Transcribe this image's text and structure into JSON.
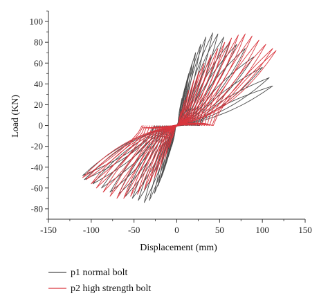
{
  "chart_data": {
    "type": "line",
    "title": "",
    "xlabel": "Displacement (mm)",
    "ylabel": "Load (KN)",
    "xlim": [
      -150,
      150
    ],
    "ylim": [
      -90,
      110
    ],
    "xticks": [
      -150,
      -100,
      -50,
      0,
      50,
      100,
      150
    ],
    "yticks": [
      -80,
      -60,
      -40,
      -20,
      0,
      20,
      40,
      60,
      80,
      100
    ],
    "grid": false,
    "legend_position": "bottom-left",
    "series": [
      {
        "name": "p1 normal bolt",
        "color": "#4a4a4a",
        "cycles": [
          {
            "dmax": 6,
            "pmax": 26,
            "dmin": -6,
            "pmin": -20
          },
          {
            "dmax": 10,
            "pmax": 38,
            "dmin": -10,
            "pmin": -30
          },
          {
            "dmax": 14,
            "pmax": 50,
            "dmin": -14,
            "pmin": -40
          },
          {
            "dmax": 18,
            "pmax": 60,
            "dmin": -18,
            "pmin": -50
          },
          {
            "dmax": 22,
            "pmax": 70,
            "dmin": -22,
            "pmin": -58
          },
          {
            "dmax": 28,
            "pmax": 78,
            "dmin": -26,
            "pmin": -65
          },
          {
            "dmax": 34,
            "pmax": 85,
            "dmin": -32,
            "pmin": -72
          },
          {
            "dmax": 42,
            "pmax": 89,
            "dmin": -38,
            "pmin": -74
          },
          {
            "dmax": 48,
            "pmax": 88,
            "dmin": -45,
            "pmin": -72
          },
          {
            "dmax": 55,
            "pmax": 85,
            "dmin": -52,
            "pmin": -70
          },
          {
            "dmax": 62,
            "pmax": 80,
            "dmin": -60,
            "pmin": -68
          },
          {
            "dmax": 70,
            "pmax": 78,
            "dmin": -68,
            "pmin": -66
          },
          {
            "dmax": 80,
            "pmax": 74,
            "dmin": -78,
            "pmin": -64
          },
          {
            "dmax": 90,
            "pmax": 66,
            "dmin": -88,
            "pmin": -60
          },
          {
            "dmax": 100,
            "pmax": 56,
            "dmin": -98,
            "pmin": -56
          },
          {
            "dmax": 108,
            "pmax": 46,
            "dmin": -108,
            "pmin": -52
          },
          {
            "dmax": 112,
            "pmax": 38,
            "dmin": -110,
            "pmin": -48
          }
        ]
      },
      {
        "name": "p2 high strength bolt",
        "color": "#d9363e",
        "cycles": [
          {
            "dmax": 5,
            "pmax": 14,
            "dmin": -5,
            "pmin": -12
          },
          {
            "dmax": 9,
            "pmax": 24,
            "dmin": -9,
            "pmin": -22
          },
          {
            "dmax": 14,
            "pmax": 34,
            "dmin": -14,
            "pmin": -32
          },
          {
            "dmax": 20,
            "pmax": 44,
            "dmin": -20,
            "pmin": -42
          },
          {
            "dmax": 26,
            "pmax": 52,
            "dmin": -26,
            "pmin": -50
          },
          {
            "dmax": 32,
            "pmax": 60,
            "dmin": -32,
            "pmin": -56
          },
          {
            "dmax": 40,
            "pmax": 68,
            "dmin": -38,
            "pmin": -62
          },
          {
            "dmax": 48,
            "pmax": 74,
            "dmin": -46,
            "pmin": -66
          },
          {
            "dmax": 56,
            "pmax": 80,
            "dmin": -54,
            "pmin": -68
          },
          {
            "dmax": 64,
            "pmax": 84,
            "dmin": -62,
            "pmin": -70
          },
          {
            "dmax": 72,
            "pmax": 87,
            "dmin": -70,
            "pmin": -70
          },
          {
            "dmax": 80,
            "pmax": 88,
            "dmin": -78,
            "pmin": -68
          },
          {
            "dmax": 88,
            "pmax": 86,
            "dmin": -86,
            "pmin": -64
          },
          {
            "dmax": 96,
            "pmax": 82,
            "dmin": -94,
            "pmin": -60
          },
          {
            "dmax": 104,
            "pmax": 78,
            "dmin": -100,
            "pmin": -56
          },
          {
            "dmax": 112,
            "pmax": 74,
            "dmin": -106,
            "pmin": -52
          },
          {
            "dmax": 116,
            "pmax": 72,
            "dmin": -110,
            "pmin": -50
          }
        ]
      }
    ]
  }
}
